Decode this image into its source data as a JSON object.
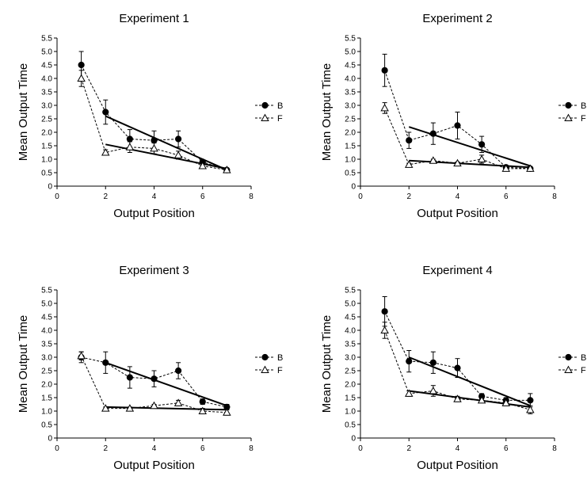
{
  "chart_data": [
    {
      "type": "line",
      "title": "Experiment 1",
      "xlabel": "Output Position",
      "ylabel": "Mean Output Time",
      "xlim": [
        0,
        8
      ],
      "ylim": [
        0,
        5.5
      ],
      "xticks": [
        "0",
        "2",
        "4",
        "6",
        "8"
      ],
      "yticks": [
        "0",
        "0.5",
        "1.0",
        "1.5",
        "2.0",
        "2.5",
        "3.0",
        "3.5",
        "4.0",
        "4.5",
        "5.0",
        "5.5"
      ],
      "grid": false,
      "legend": "right",
      "series": [
        {
          "name": "B",
          "marker": "circle",
          "x": [
            1,
            2,
            3,
            4,
            5,
            6,
            7
          ],
          "values": [
            4.5,
            2.75,
            1.75,
            1.7,
            1.75,
            0.9,
            0.6
          ],
          "errors": [
            0.5,
            0.45,
            0.35,
            0.35,
            0.3,
            0.05,
            0.05
          ],
          "fit": {
            "x": [
              2,
              7
            ],
            "y": [
              2.6,
              0.6
            ]
          }
        },
        {
          "name": "F",
          "marker": "triangle",
          "x": [
            1,
            2,
            3,
            4,
            5,
            6,
            7
          ],
          "values": [
            4.0,
            1.25,
            1.45,
            1.4,
            1.15,
            0.75,
            0.6
          ],
          "errors": [
            0.3,
            0.1,
            0.2,
            0.2,
            0.15,
            0.1,
            0.05
          ],
          "fit": {
            "x": [
              2,
              7
            ],
            "y": [
              1.55,
              0.65
            ]
          }
        }
      ]
    },
    {
      "type": "line",
      "title": "Experiment 2",
      "xlabel": "Output Position",
      "ylabel": "Mean Output Time",
      "xlim": [
        0,
        8
      ],
      "ylim": [
        0,
        5.5
      ],
      "xticks": [
        "0",
        "2",
        "4",
        "6",
        "8"
      ],
      "yticks": [
        "0",
        "0.5",
        "1.0",
        "1.5",
        "2.0",
        "2.5",
        "3.0",
        "3.5",
        "4.0",
        "4.5",
        "5.0",
        "5.5"
      ],
      "grid": false,
      "legend": "right",
      "series": [
        {
          "name": "B",
          "marker": "circle",
          "x": [
            1,
            2,
            3,
            4,
            5,
            6,
            7
          ],
          "values": [
            4.3,
            1.7,
            1.95,
            2.25,
            1.55,
            0.7,
            0.65
          ],
          "errors": [
            0.6,
            0.3,
            0.4,
            0.5,
            0.3,
            0.05,
            0.05
          ],
          "fit": {
            "x": [
              2,
              7
            ],
            "y": [
              2.2,
              0.75
            ]
          }
        },
        {
          "name": "F",
          "marker": "triangle",
          "x": [
            1,
            2,
            3,
            4,
            5,
            6,
            7
          ],
          "values": [
            2.9,
            0.8,
            0.95,
            0.85,
            1.0,
            0.65,
            0.65
          ],
          "errors": [
            0.2,
            0.05,
            0.05,
            0.05,
            0.15,
            0.05,
            0.05
          ],
          "fit": {
            "x": [
              2,
              7
            ],
            "y": [
              0.95,
              0.7
            ]
          }
        }
      ]
    },
    {
      "type": "line",
      "title": "Experiment 3",
      "xlabel": "Output Position",
      "ylabel": "Mean Output Time",
      "xlim": [
        0,
        8
      ],
      "ylim": [
        0,
        5.5
      ],
      "xticks": [
        "0",
        "2",
        "4",
        "6",
        "8"
      ],
      "yticks": [
        "0",
        "0.5",
        "1.0",
        "1.5",
        "2.0",
        "2.5",
        "3.0",
        "3.5",
        "4.0",
        "4.5",
        "5.0",
        "5.5"
      ],
      "grid": false,
      "legend": "right",
      "series": [
        {
          "name": "B",
          "marker": "circle",
          "x": [
            1,
            2,
            3,
            4,
            5,
            6,
            7
          ],
          "values": [
            3.0,
            2.8,
            2.25,
            2.2,
            2.5,
            1.35,
            1.15
          ],
          "errors": [
            0.2,
            0.4,
            0.4,
            0.3,
            0.3,
            0.1,
            0.1
          ],
          "fit": {
            "x": [
              2,
              7
            ],
            "y": [
              2.8,
              1.2
            ]
          }
        },
        {
          "name": "F",
          "marker": "triangle",
          "x": [
            1,
            2,
            3,
            4,
            5,
            6,
            7
          ],
          "values": [
            3.05,
            1.1,
            1.1,
            1.2,
            1.3,
            1.0,
            0.95
          ],
          "errors": [
            0.15,
            0.05,
            0.05,
            0.05,
            0.1,
            0.1,
            0.1
          ],
          "fit": {
            "x": [
              2,
              7
            ],
            "y": [
              1.15,
              1.05
            ]
          }
        }
      ]
    },
    {
      "type": "line",
      "title": "Experiment 4",
      "xlabel": "Output Position",
      "ylabel": "Mean Output Time",
      "xlim": [
        0,
        8
      ],
      "ylim": [
        0,
        5.5
      ],
      "xticks": [
        "0",
        "2",
        "4",
        "6",
        "8"
      ],
      "yticks": [
        "0",
        "0.5",
        "1.0",
        "1.5",
        "2.0",
        "2.5",
        "3.0",
        "3.5",
        "4.0",
        "4.5",
        "5.0",
        "5.5"
      ],
      "grid": false,
      "legend": "right",
      "series": [
        {
          "name": "B",
          "marker": "circle",
          "x": [
            1,
            2,
            3,
            4,
            5,
            6,
            7
          ],
          "values": [
            4.7,
            2.85,
            2.8,
            2.6,
            1.55,
            1.4,
            1.4
          ],
          "errors": [
            0.55,
            0.4,
            0.4,
            0.35,
            0.1,
            0.1,
            0.25
          ],
          "fit": {
            "x": [
              2,
              7
            ],
            "y": [
              3.0,
              1.2
            ]
          }
        },
        {
          "name": "F",
          "marker": "triangle",
          "x": [
            1,
            2,
            3,
            4,
            5,
            6,
            7
          ],
          "values": [
            4.0,
            1.65,
            1.75,
            1.45,
            1.4,
            1.3,
            1.05
          ],
          "errors": [
            0.3,
            0.1,
            0.2,
            0.1,
            0.05,
            0.1,
            0.15
          ],
          "fit": {
            "x": [
              2,
              7
            ],
            "y": [
              1.75,
              1.15
            ]
          }
        }
      ]
    }
  ]
}
